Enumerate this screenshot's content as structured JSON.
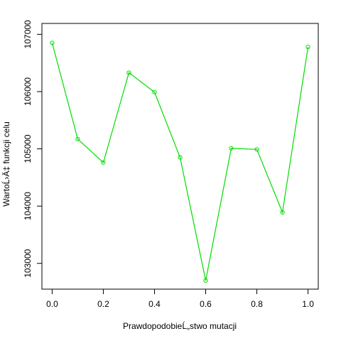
{
  "chart_data": {
    "type": "line",
    "title": "",
    "xlabel": "PrawdopodobieĹ„stwo mutacji",
    "ylabel": "WartoĹ›Ä‡ funkcji celu",
    "x": [
      0.0,
      0.1,
      0.2,
      0.3,
      0.4,
      0.5,
      0.6,
      0.7,
      0.8,
      0.9,
      1.0
    ],
    "series": [
      {
        "values": [
          106850,
          105170,
          104760,
          106330,
          105990,
          104850,
          102700,
          105010,
          104990,
          103890,
          106780
        ],
        "color": "#00dd00"
      }
    ],
    "xlim": [
      -0.04,
      1.04
    ],
    "ylim": [
      102550,
      107190
    ],
    "xticks": [
      0.0,
      0.2,
      0.4,
      0.6,
      0.8,
      1.0
    ],
    "xtick_labels": [
      "0.0",
      "0.2",
      "0.4",
      "0.6",
      "0.8",
      "1.0"
    ],
    "yticks": [
      103000,
      104000,
      105000,
      106000,
      107000
    ],
    "ytick_labels": [
      "103000",
      "104000",
      "105000",
      "106000",
      "107000"
    ],
    "grid": false,
    "legend": "none",
    "point_marker": "open-circle"
  }
}
